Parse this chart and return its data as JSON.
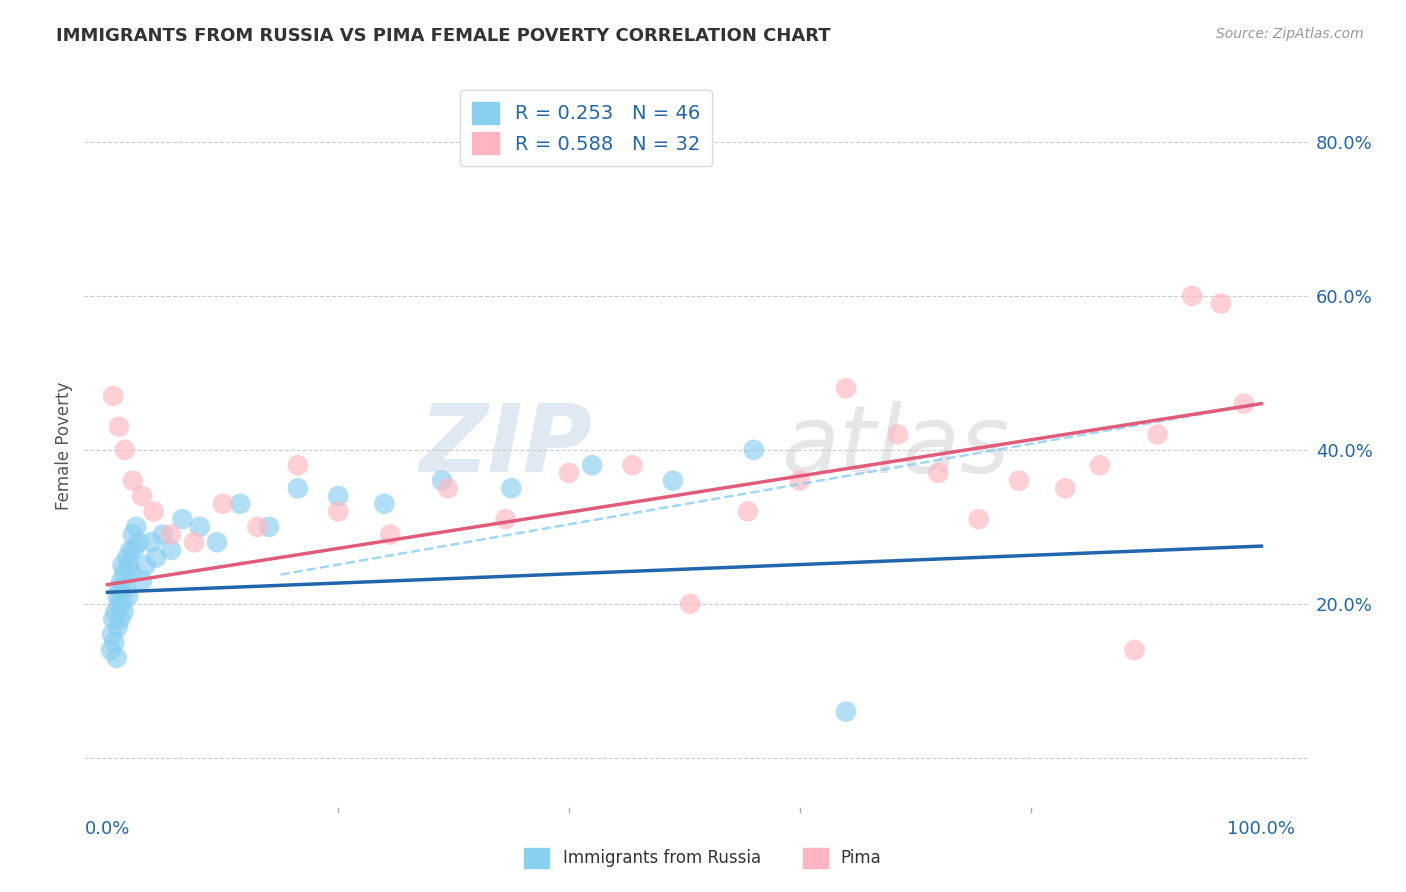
{
  "title": "IMMIGRANTS FROM RUSSIA VS PIMA FEMALE POVERTY CORRELATION CHART",
  "source": "Source: ZipAtlas.com",
  "ylabel_label": "Female Poverty",
  "x_tick_labels": [
    "0.0%",
    "",
    "",
    "",
    "",
    "100.0%"
  ],
  "y_tick_labels": [
    "",
    "20.0%",
    "40.0%",
    "60.0%",
    "80.0%"
  ],
  "xlim": [
    -0.02,
    1.04
  ],
  "ylim": [
    -0.07,
    0.88
  ],
  "blue_color": "#89CFF0",
  "pink_color": "#FFB6C1",
  "blue_line_color": "#2166ac",
  "pink_line_color": "#e05c7a",
  "dashed_line_color": "#89CFF0",
  "background_color": "#ffffff",
  "grid_color": "#cccccc",
  "blue_scatter_x": [
    0.003,
    0.004,
    0.005,
    0.006,
    0.007,
    0.008,
    0.009,
    0.009,
    0.01,
    0.01,
    0.011,
    0.012,
    0.013,
    0.013,
    0.014,
    0.015,
    0.016,
    0.017,
    0.018,
    0.019,
    0.02,
    0.021,
    0.022,
    0.023,
    0.025,
    0.027,
    0.03,
    0.033,
    0.038,
    0.042,
    0.048,
    0.055,
    0.065,
    0.08,
    0.095,
    0.115,
    0.14,
    0.165,
    0.2,
    0.24,
    0.29,
    0.35,
    0.42,
    0.49,
    0.56,
    0.64
  ],
  "blue_scatter_y": [
    0.14,
    0.16,
    0.18,
    0.15,
    0.19,
    0.13,
    0.21,
    0.17,
    0.2,
    0.22,
    0.18,
    0.23,
    0.2,
    0.25,
    0.19,
    0.24,
    0.22,
    0.26,
    0.21,
    0.25,
    0.27,
    0.24,
    0.29,
    0.27,
    0.3,
    0.28,
    0.23,
    0.25,
    0.28,
    0.26,
    0.29,
    0.27,
    0.31,
    0.3,
    0.28,
    0.33,
    0.3,
    0.35,
    0.34,
    0.33,
    0.36,
    0.35,
    0.38,
    0.36,
    0.4,
    0.06
  ],
  "pink_scatter_x": [
    0.005,
    0.01,
    0.015,
    0.022,
    0.03,
    0.04,
    0.055,
    0.075,
    0.1,
    0.13,
    0.165,
    0.2,
    0.245,
    0.295,
    0.345,
    0.4,
    0.455,
    0.505,
    0.555,
    0.6,
    0.64,
    0.685,
    0.72,
    0.755,
    0.79,
    0.83,
    0.86,
    0.89,
    0.91,
    0.94,
    0.965,
    0.985
  ],
  "pink_scatter_y": [
    0.47,
    0.43,
    0.4,
    0.36,
    0.34,
    0.32,
    0.29,
    0.28,
    0.33,
    0.3,
    0.38,
    0.32,
    0.29,
    0.35,
    0.31,
    0.37,
    0.38,
    0.2,
    0.32,
    0.36,
    0.48,
    0.42,
    0.37,
    0.31,
    0.36,
    0.35,
    0.38,
    0.14,
    0.42,
    0.6,
    0.59,
    0.46
  ],
  "blue_regline": [
    0.0,
    1.0,
    0.215,
    0.275
  ],
  "pink_regline": [
    0.0,
    1.0,
    0.225,
    0.46
  ],
  "dashed_regline": [
    0.15,
    1.0,
    0.238,
    0.46
  ],
  "watermark_zip": "ZIP",
  "watermark_atlas": "atlas"
}
